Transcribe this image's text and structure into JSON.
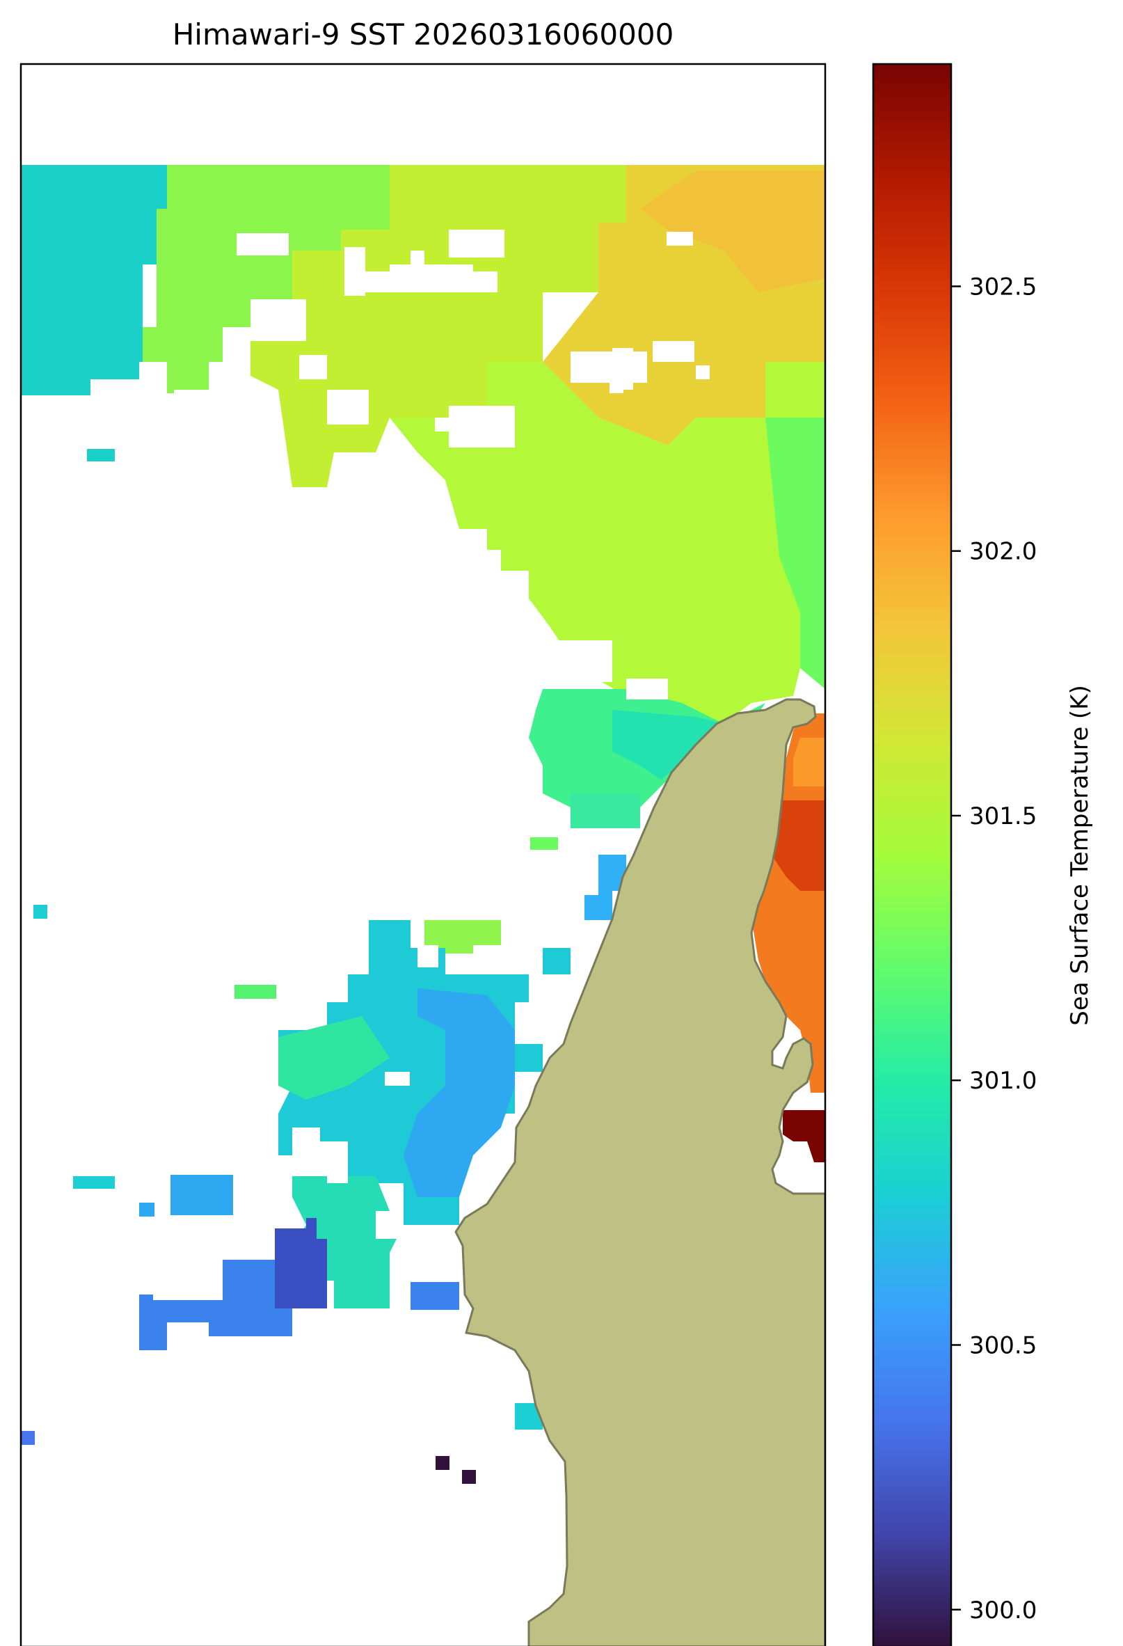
{
  "title": "Himawari-9 SST 20260316060000",
  "colorbar": {
    "label": "Sea Surface Temperature (K)",
    "ticks": [
      "300.0",
      "300.5",
      "301.0",
      "301.5",
      "302.0",
      "302.5"
    ],
    "tick_values": [
      300.0,
      300.5,
      301.0,
      301.5,
      302.0,
      302.5
    ],
    "range": [
      299.93,
      302.92
    ],
    "colormap": "turbo",
    "gradient": [
      "#30123b",
      "#4145ab",
      "#4675ed",
      "#39a2fc",
      "#1bcfd4",
      "#24eca6",
      "#61fc6c",
      "#a4fc3b",
      "#d1e834",
      "#f3c63a",
      "#fe9b2d",
      "#f36315",
      "#d93806",
      "#b11901",
      "#7a0403"
    ]
  },
  "land_color": "#bfc083",
  "land_edge_color": "#7a7a5a",
  "chart_data": {
    "type": "heatmap",
    "title": "Himawari-9 SST 20260316060000",
    "variable": "Sea Surface Temperature",
    "units": "K",
    "colorbar_label": "Sea Surface Temperature (K)",
    "color_range": [
      299.93,
      302.92
    ],
    "missing_data": "white (cloud / no retrieval)",
    "regions": [
      {
        "area": "north-west",
        "approx_value": 300.9
      },
      {
        "area": "north-central band",
        "approx_value": 301.6
      },
      {
        "area": "north-east",
        "approx_value": 301.9
      },
      {
        "area": "east-central (open sea)",
        "approx_value": 301.5
      },
      {
        "area": "central near coast",
        "approx_value": 301.0
      },
      {
        "area": "east inlet (right of peninsula)",
        "approx_value": 302.3
      },
      {
        "area": "east inlet south tip",
        "approx_value": 302.85
      },
      {
        "area": "south-central patch",
        "approx_value": 300.8
      },
      {
        "area": "south-west patch",
        "approx_value": 300.4
      },
      {
        "area": "isolated southern pixels",
        "approx_value": 300.0
      }
    ]
  }
}
